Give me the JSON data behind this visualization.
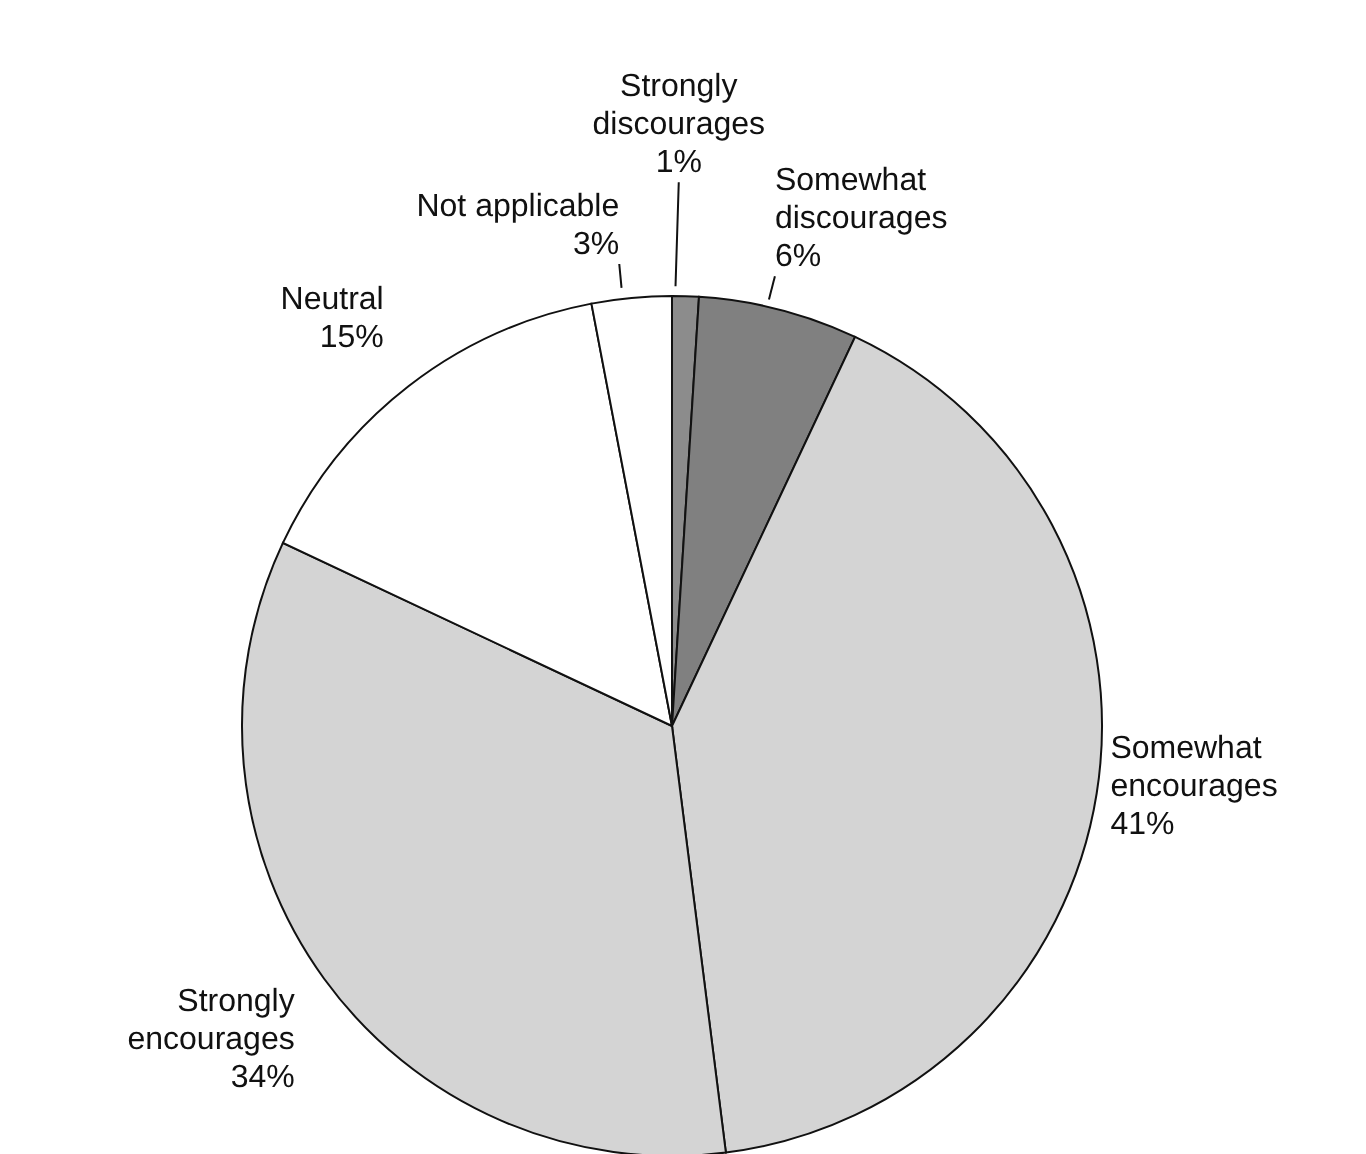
{
  "chart_data": {
    "type": "pie",
    "categories": [
      "Strongly discourages",
      "Somewhat discourages",
      "Somewhat encourages",
      "Strongly encourages",
      "Neutral",
      "Not applicable"
    ],
    "values": [
      1,
      6,
      41,
      34,
      15,
      3
    ],
    "value_labels": [
      "1%",
      "6%",
      "41%",
      "34%",
      "15%",
      "3%"
    ],
    "colors": [
      "#8c8c8c",
      "#808080",
      "#d4d4d4",
      "#d4d4d4",
      "#ffffff",
      "#ffffff"
    ],
    "legend": false
  }
}
